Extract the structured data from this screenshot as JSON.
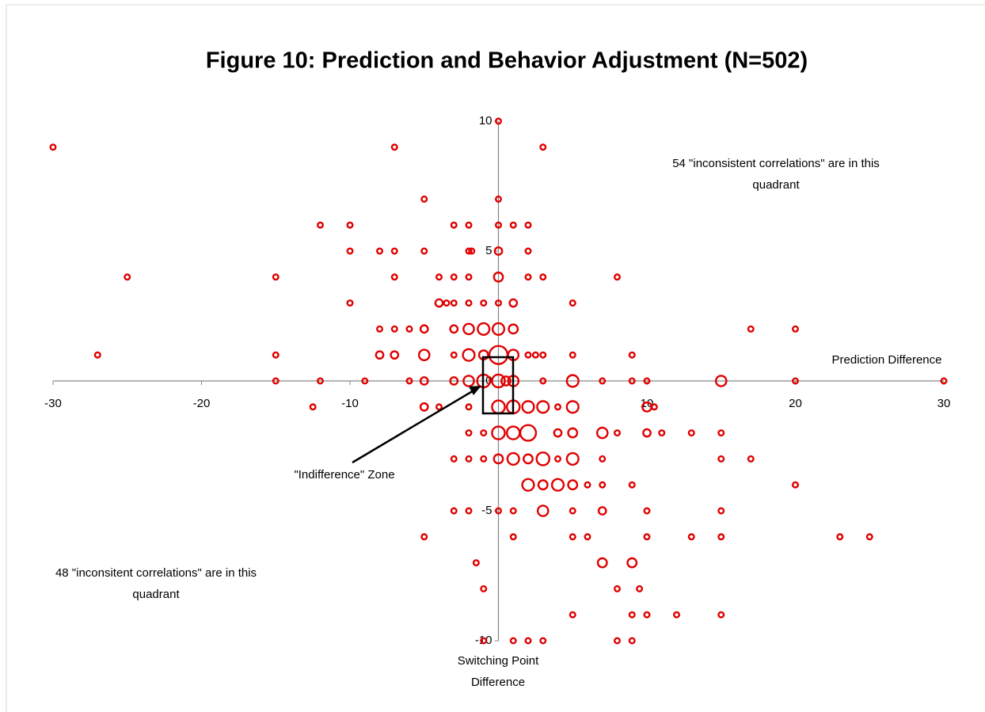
{
  "chart_data": {
    "type": "bubble",
    "title": "Figure 10: Prediction and Behavior Adjustment (N=502)",
    "x_label": "Prediction Difference",
    "y_label": "Switching Point Difference",
    "annotations": [
      "54 \"inconsistent correlations\" are in this quadrant",
      "48 \"inconsitent correlations\" are in this quadrant",
      "\"Indifference\" Zone"
    ],
    "color": "#e00000",
    "xlim": [
      -30,
      30
    ],
    "ylim": [
      -10,
      10
    ],
    "xticks": [
      -30,
      -20,
      -10,
      10,
      20,
      30
    ],
    "yticks": [
      -10,
      -5,
      0,
      5,
      10
    ],
    "x": [
      0,
      -30,
      -7,
      3,
      -5,
      0,
      -12,
      -10,
      -3,
      -2,
      0,
      1,
      2,
      -10,
      -8,
      -7,
      -5,
      -2,
      -1.8,
      0,
      2,
      -25,
      -15,
      -7,
      -4,
      -3,
      -2,
      0,
      2,
      3,
      8,
      -10,
      -4,
      -3.5,
      -3,
      -2,
      -1,
      0,
      1,
      5,
      -8,
      -7,
      -6,
      -5,
      -3,
      -2,
      -1,
      0,
      1,
      17,
      20,
      -27,
      -15,
      -8,
      -7,
      -5,
      -3,
      -2,
      -1,
      0,
      1,
      2,
      2.5,
      3,
      5,
      9,
      -15,
      -12,
      -9,
      -6,
      -5,
      -3,
      -2,
      -1,
      0,
      0.5,
      1,
      3,
      5,
      7,
      9,
      10,
      15,
      20,
      30,
      -12.5,
      -5,
      -4,
      -2,
      0,
      1,
      2,
      3,
      4,
      5,
      10,
      10.5,
      -2,
      -1,
      0,
      1,
      2,
      4,
      5,
      7,
      8,
      10,
      11,
      13,
      15,
      -3,
      -2,
      -1,
      0,
      1,
      2,
      3,
      4,
      5,
      7,
      15,
      17,
      2,
      3,
      4,
      5,
      6,
      7,
      9,
      20,
      -3,
      -2,
      0,
      1,
      3,
      5,
      7,
      10,
      15,
      -5,
      1,
      5,
      6,
      10,
      13,
      15,
      23,
      25,
      -1.5,
      7,
      9,
      -1,
      8,
      9.5,
      5,
      9,
      10,
      12,
      15,
      -1,
      1,
      2,
      3,
      8,
      9
    ],
    "y": [
      10,
      9,
      9,
      9,
      7,
      7,
      6,
      6,
      6,
      6,
      6,
      6,
      6,
      5,
      5,
      5,
      5,
      5,
      5,
      5,
      5,
      4,
      4,
      4,
      4,
      4,
      4,
      4,
      4,
      4,
      4,
      3,
      3,
      3,
      3,
      3,
      3,
      3,
      3,
      3,
      2,
      2,
      2,
      2,
      2,
      2,
      2,
      2,
      2,
      2,
      2,
      1,
      1,
      1,
      1,
      1,
      1,
      1,
      1,
      1,
      1,
      1,
      1,
      1,
      1,
      1,
      0,
      0,
      0,
      0,
      0,
      0,
      0,
      0,
      0,
      0,
      0,
      0,
      0,
      0,
      0,
      0,
      0,
      0,
      0,
      -1,
      -1,
      -1,
      -1,
      -1,
      -1,
      -1,
      -1,
      -1,
      -1,
      -1,
      -1,
      -2,
      -2,
      -2,
      -2,
      -2,
      -2,
      -2,
      -2,
      -2,
      -2,
      -2,
      -2,
      -2,
      -3,
      -3,
      -3,
      -3,
      -3,
      -3,
      -3,
      -3,
      -3,
      -3,
      -3,
      -3,
      -4,
      -4,
      -4,
      -4,
      -4,
      -4,
      -4,
      -4,
      -5,
      -5,
      -5,
      -5,
      -5,
      -5,
      -5,
      -5,
      -5,
      -6,
      -6,
      -6,
      -6,
      -6,
      -6,
      -6,
      -6,
      -6,
      -7,
      -7,
      -7,
      -8,
      -8,
      -8,
      -9,
      -9,
      -9,
      -9,
      -9,
      -10,
      -10,
      -10,
      -10,
      -10,
      -10
    ],
    "sizes": [
      1,
      1,
      1,
      1,
      1,
      1,
      1,
      1,
      1,
      1,
      1,
      1,
      1,
      1,
      1,
      1,
      1,
      1,
      1,
      2,
      1,
      1,
      1,
      1,
      1,
      1,
      1,
      3,
      1,
      1,
      1,
      1,
      2,
      1,
      1,
      1,
      1,
      1,
      2,
      1,
      1,
      1,
      1,
      2,
      2,
      4,
      5,
      5,
      3,
      1,
      1,
      1,
      1,
      2,
      2,
      4,
      1,
      5,
      3,
      12,
      4,
      1,
      1,
      1,
      1,
      1,
      1,
      1,
      1,
      1,
      2,
      2,
      4,
      6,
      6,
      3,
      4,
      1,
      5,
      1,
      1,
      1,
      4,
      1,
      1,
      1,
      2,
      1,
      1,
      6,
      6,
      5,
      5,
      1,
      5,
      3,
      1,
      1,
      1,
      6,
      6,
      9,
      2,
      3,
      4,
      1,
      2,
      1,
      1,
      1,
      1,
      1,
      1,
      3,
      5,
      3,
      6,
      1,
      5,
      1,
      1,
      1,
      5,
      3,
      5,
      3,
      1,
      1,
      1,
      1,
      1,
      1,
      1,
      1,
      4,
      1,
      2,
      1,
      1,
      1,
      1,
      1,
      1,
      1,
      1,
      1,
      1,
      1,
      1,
      3,
      3,
      1,
      1,
      1,
      1,
      1,
      1,
      1,
      1,
      1,
      1,
      1,
      1,
      1,
      1
    ]
  }
}
